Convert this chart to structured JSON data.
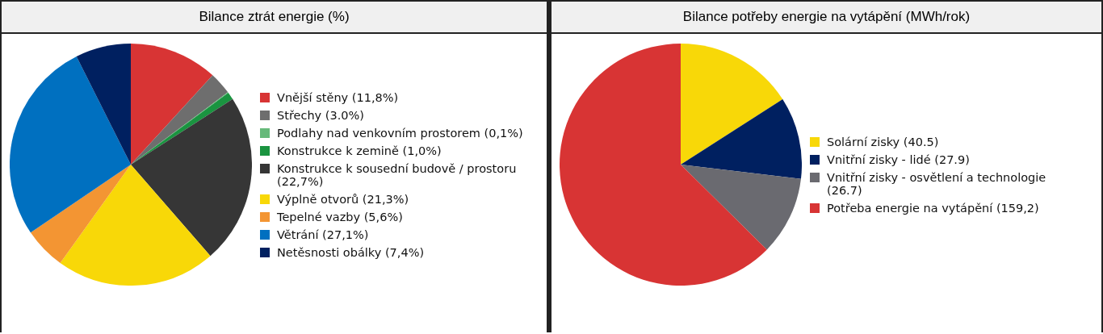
{
  "chart_data": [
    {
      "type": "pie",
      "title": "Bilance ztrát energie (%)",
      "legend": "right",
      "categories": [
        "Vnější stěny (11,8%)",
        "Střechy (3.0%)",
        "Podlahy nad venkovním prostorem (0,1%)",
        "Konstrukce k zemině (1,0%)",
        "Konstrukce k sousední budově / prostoru (22,7%)",
        "Výplně otvorů (21,3%)",
        "Tepelné vazby (5,6%)",
        "Větrání (27,1%)",
        "Netěsnosti obálky (7,4%)"
      ],
      "values": [
        11.8,
        3.0,
        0.1,
        1.0,
        22.7,
        21.3,
        5.6,
        27.1,
        7.4
      ],
      "colors": [
        "#d83434",
        "#6e6e6e",
        "#66b97a",
        "#1a9440",
        "#363636",
        "#f8d808",
        "#f39533",
        "#0070c0",
        "#002060"
      ]
    },
    {
      "type": "pie",
      "title": "Bilance potřeby energie na vytápění (MWh/rok)",
      "legend": "right",
      "categories": [
        "Solární zisky (40.5)",
        "Vnitřní zisky - lidé (27.9)",
        "Vnitřní zisky - osvětlení a technologie (26.7)",
        "Potřeba energie na vytápění (159,2)"
      ],
      "values": [
        40.5,
        27.9,
        26.7,
        159.2
      ],
      "colors": [
        "#f8d808",
        "#002060",
        "#6a6a70",
        "#d83434"
      ]
    }
  ]
}
